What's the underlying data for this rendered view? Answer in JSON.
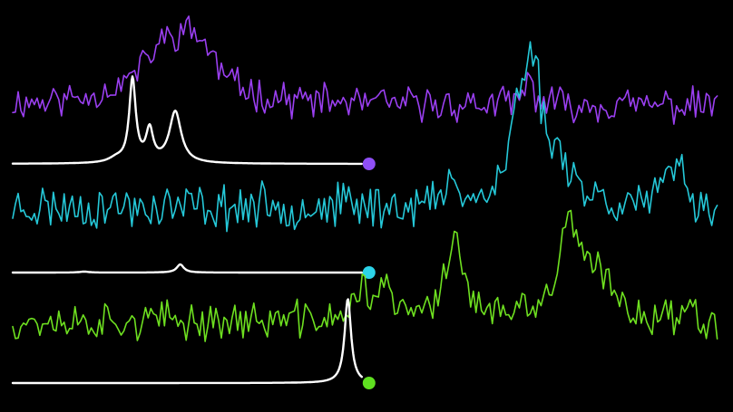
{
  "chart_data": {
    "type": "line",
    "background": "#000000",
    "xlim": [
      0,
      100
    ],
    "ylim": [
      0,
      1
    ],
    "grid": false,
    "legend": "none",
    "series": [
      {
        "role": "noisy-trace",
        "color": "#9a3ff0",
        "seed": 11,
        "noise": 0.13,
        "x_range": [
          0,
          99
        ],
        "baseline": 0.08,
        "peaks": [
          {
            "center": 22,
            "height": 0.55,
            "width": 5.0
          },
          {
            "center": 26,
            "height": 0.35,
            "width": 3.0
          },
          {
            "center": 72.5,
            "height": 0.22,
            "width": 0.8
          }
        ]
      },
      {
        "role": "clean-trace",
        "color": "#ffffff",
        "marker_color": "#8f4ff5",
        "x_range": [
          0,
          49
        ],
        "baseline": 0.0,
        "peaks": [
          {
            "center": 16.8,
            "height": 1.0,
            "width": 0.55
          },
          {
            "center": 19.2,
            "height": 0.38,
            "width": 0.6
          },
          {
            "center": 22.8,
            "height": 0.62,
            "width": 1.0
          },
          {
            "center": 14.5,
            "height": 0.05,
            "width": 1.2
          }
        ]
      },
      {
        "role": "noisy-trace",
        "color": "#25c8d8",
        "seed": 23,
        "noise": 0.12,
        "x_range": [
          0,
          99
        ],
        "baseline": 0.07,
        "peaks": [
          {
            "center": 72.8,
            "height": 1.0,
            "width": 1.6
          },
          {
            "center": 70.5,
            "height": 0.35,
            "width": 1.0
          },
          {
            "center": 62,
            "height": 0.22,
            "width": 0.8
          },
          {
            "center": 93,
            "height": 0.3,
            "width": 1.2
          },
          {
            "center": 77,
            "height": 0.25,
            "width": 2.0
          }
        ]
      },
      {
        "role": "clean-trace",
        "color": "#ffffff",
        "marker_color": "#2cd3e8",
        "x_range": [
          0,
          49
        ],
        "baseline": 0.0,
        "peaks": [
          {
            "center": 23.5,
            "height": 0.45,
            "width": 0.6
          },
          {
            "center": 10,
            "height": 0.05,
            "width": 0.8
          }
        ]
      },
      {
        "role": "noisy-trace",
        "color": "#6ee020",
        "seed": 37,
        "noise": 0.13,
        "x_range": [
          0,
          99
        ],
        "baseline": 0.08,
        "peaks": [
          {
            "center": 62,
            "height": 0.75,
            "width": 1.4
          },
          {
            "center": 78,
            "height": 0.8,
            "width": 1.6
          },
          {
            "center": 49,
            "height": 0.3,
            "width": 0.8
          },
          {
            "center": 52,
            "height": 0.25,
            "width": 1.5
          },
          {
            "center": 82,
            "height": 0.35,
            "width": 2.5
          },
          {
            "center": 95,
            "height": 0.15,
            "width": 0.6
          }
        ]
      },
      {
        "role": "clean-trace",
        "color": "#ffffff",
        "marker_color": "#5fe020",
        "x_range": [
          0,
          49
        ],
        "baseline": 0.0,
        "peaks": [
          {
            "center": 47,
            "height": 1.0,
            "width": 0.55
          }
        ]
      }
    ]
  }
}
